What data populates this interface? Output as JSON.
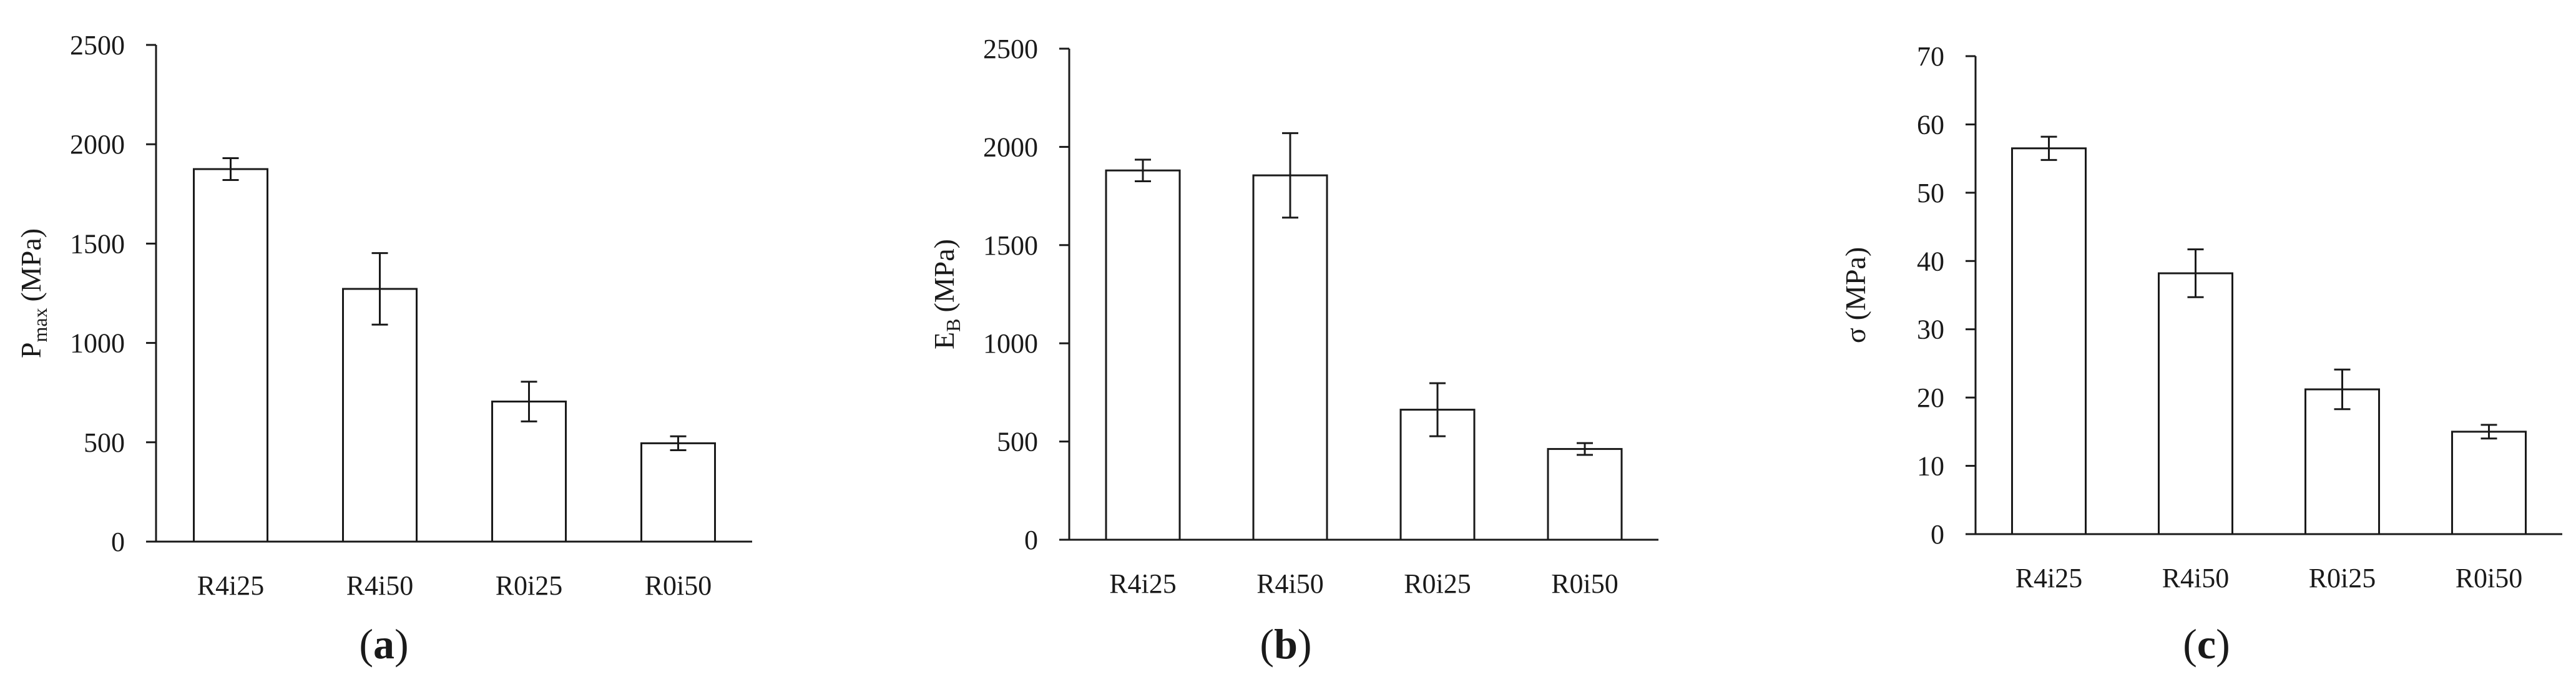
{
  "chart_data": [
    {
      "type": "bar",
      "panel_label": "a",
      "ylabel": "P",
      "ylabel_subscript": "max",
      "ylabel_unit": "(MPa)",
      "categories": [
        "R4i25",
        "R4i50",
        "R0i25",
        "R0i50"
      ],
      "series": [
        {
          "values": [
            1875,
            1272,
            705,
            495
          ],
          "errors": [
            55,
            180,
            100,
            35
          ]
        }
      ],
      "ylim": [
        0,
        2500
      ],
      "yticks": [
        0,
        500,
        1000,
        1500,
        2000,
        2500
      ],
      "grid": false
    },
    {
      "type": "bar",
      "panel_label": "b",
      "ylabel": "E",
      "ylabel_subscript": "B",
      "ylabel_unit": "(MPa)",
      "categories": [
        "R4i25",
        "R4i50",
        "R0i25",
        "R0i50"
      ],
      "series": [
        {
          "values": [
            1880,
            1855,
            662,
            462
          ],
          "errors": [
            55,
            215,
            135,
            30
          ]
        }
      ],
      "ylim": [
        0,
        2500
      ],
      "yticks": [
        0,
        500,
        1000,
        1500,
        2000,
        2500
      ],
      "grid": false
    },
    {
      "type": "bar",
      "panel_label": "c",
      "ylabel": "σ",
      "ylabel_subscript": "",
      "ylabel_unit": "(MPa)",
      "categories": [
        "R4i25",
        "R4i50",
        "R0i25",
        "R0i50"
      ],
      "series": [
        {
          "values": [
            56.5,
            38.2,
            21.2,
            15.0
          ],
          "errors": [
            1.7,
            3.5,
            2.9,
            1.0
          ]
        }
      ],
      "ylim": [
        0,
        70
      ],
      "yticks": [
        0,
        10,
        20,
        30,
        40,
        50,
        60,
        70
      ],
      "grid": false
    }
  ],
  "colors": {
    "bar_fill": "#ffffff",
    "bar_stroke": "#1a1a1a",
    "axis": "#1a1a1a"
  }
}
